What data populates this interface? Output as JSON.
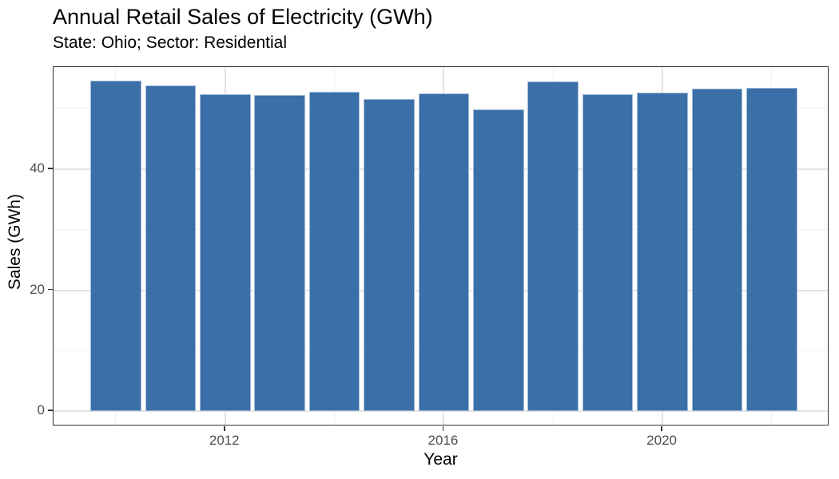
{
  "chart_data": {
    "type": "bar",
    "title": "Annual Retail Sales of Electricity (GWh)",
    "subtitle": "State: Ohio; Sector: Residential",
    "xlabel": "Year",
    "ylabel": "Sales (GWh)",
    "categories": [
      2010,
      2011,
      2012,
      2013,
      2014,
      2015,
      2016,
      2017,
      2018,
      2019,
      2020,
      2021,
      2022
    ],
    "values": [
      54.6,
      53.8,
      52.4,
      52.2,
      52.8,
      51.5,
      52.5,
      49.9,
      54.5,
      52.3,
      52.6,
      53.3,
      53.4
    ],
    "y_axis": {
      "tick_values": [
        0,
        20,
        40
      ],
      "tick_labels": [
        "0",
        "20",
        "40"
      ],
      "minor_gridlines": [
        10,
        30,
        50
      ],
      "range": [
        -2.6,
        56.9
      ]
    },
    "x_axis": {
      "tick_values": [
        2012,
        2016,
        2020
      ],
      "tick_labels": [
        "2012",
        "2016",
        "2020"
      ],
      "minor_gridlines": [
        2010,
        2014,
        2018,
        2022
      ],
      "range": [
        2009.35,
        2022.65
      ]
    },
    "grid": "on",
    "legend": "none",
    "colors": {
      "bar_fill": "#3A6FA8",
      "bar_border": "#A3BCD8",
      "grid_major": "#E4E4E4",
      "grid_minor": "#F1F1F1",
      "panel_border": "#333333",
      "tick_label": "#4D4D4D",
      "text": "#000000",
      "background": "#FFFFFF"
    }
  }
}
